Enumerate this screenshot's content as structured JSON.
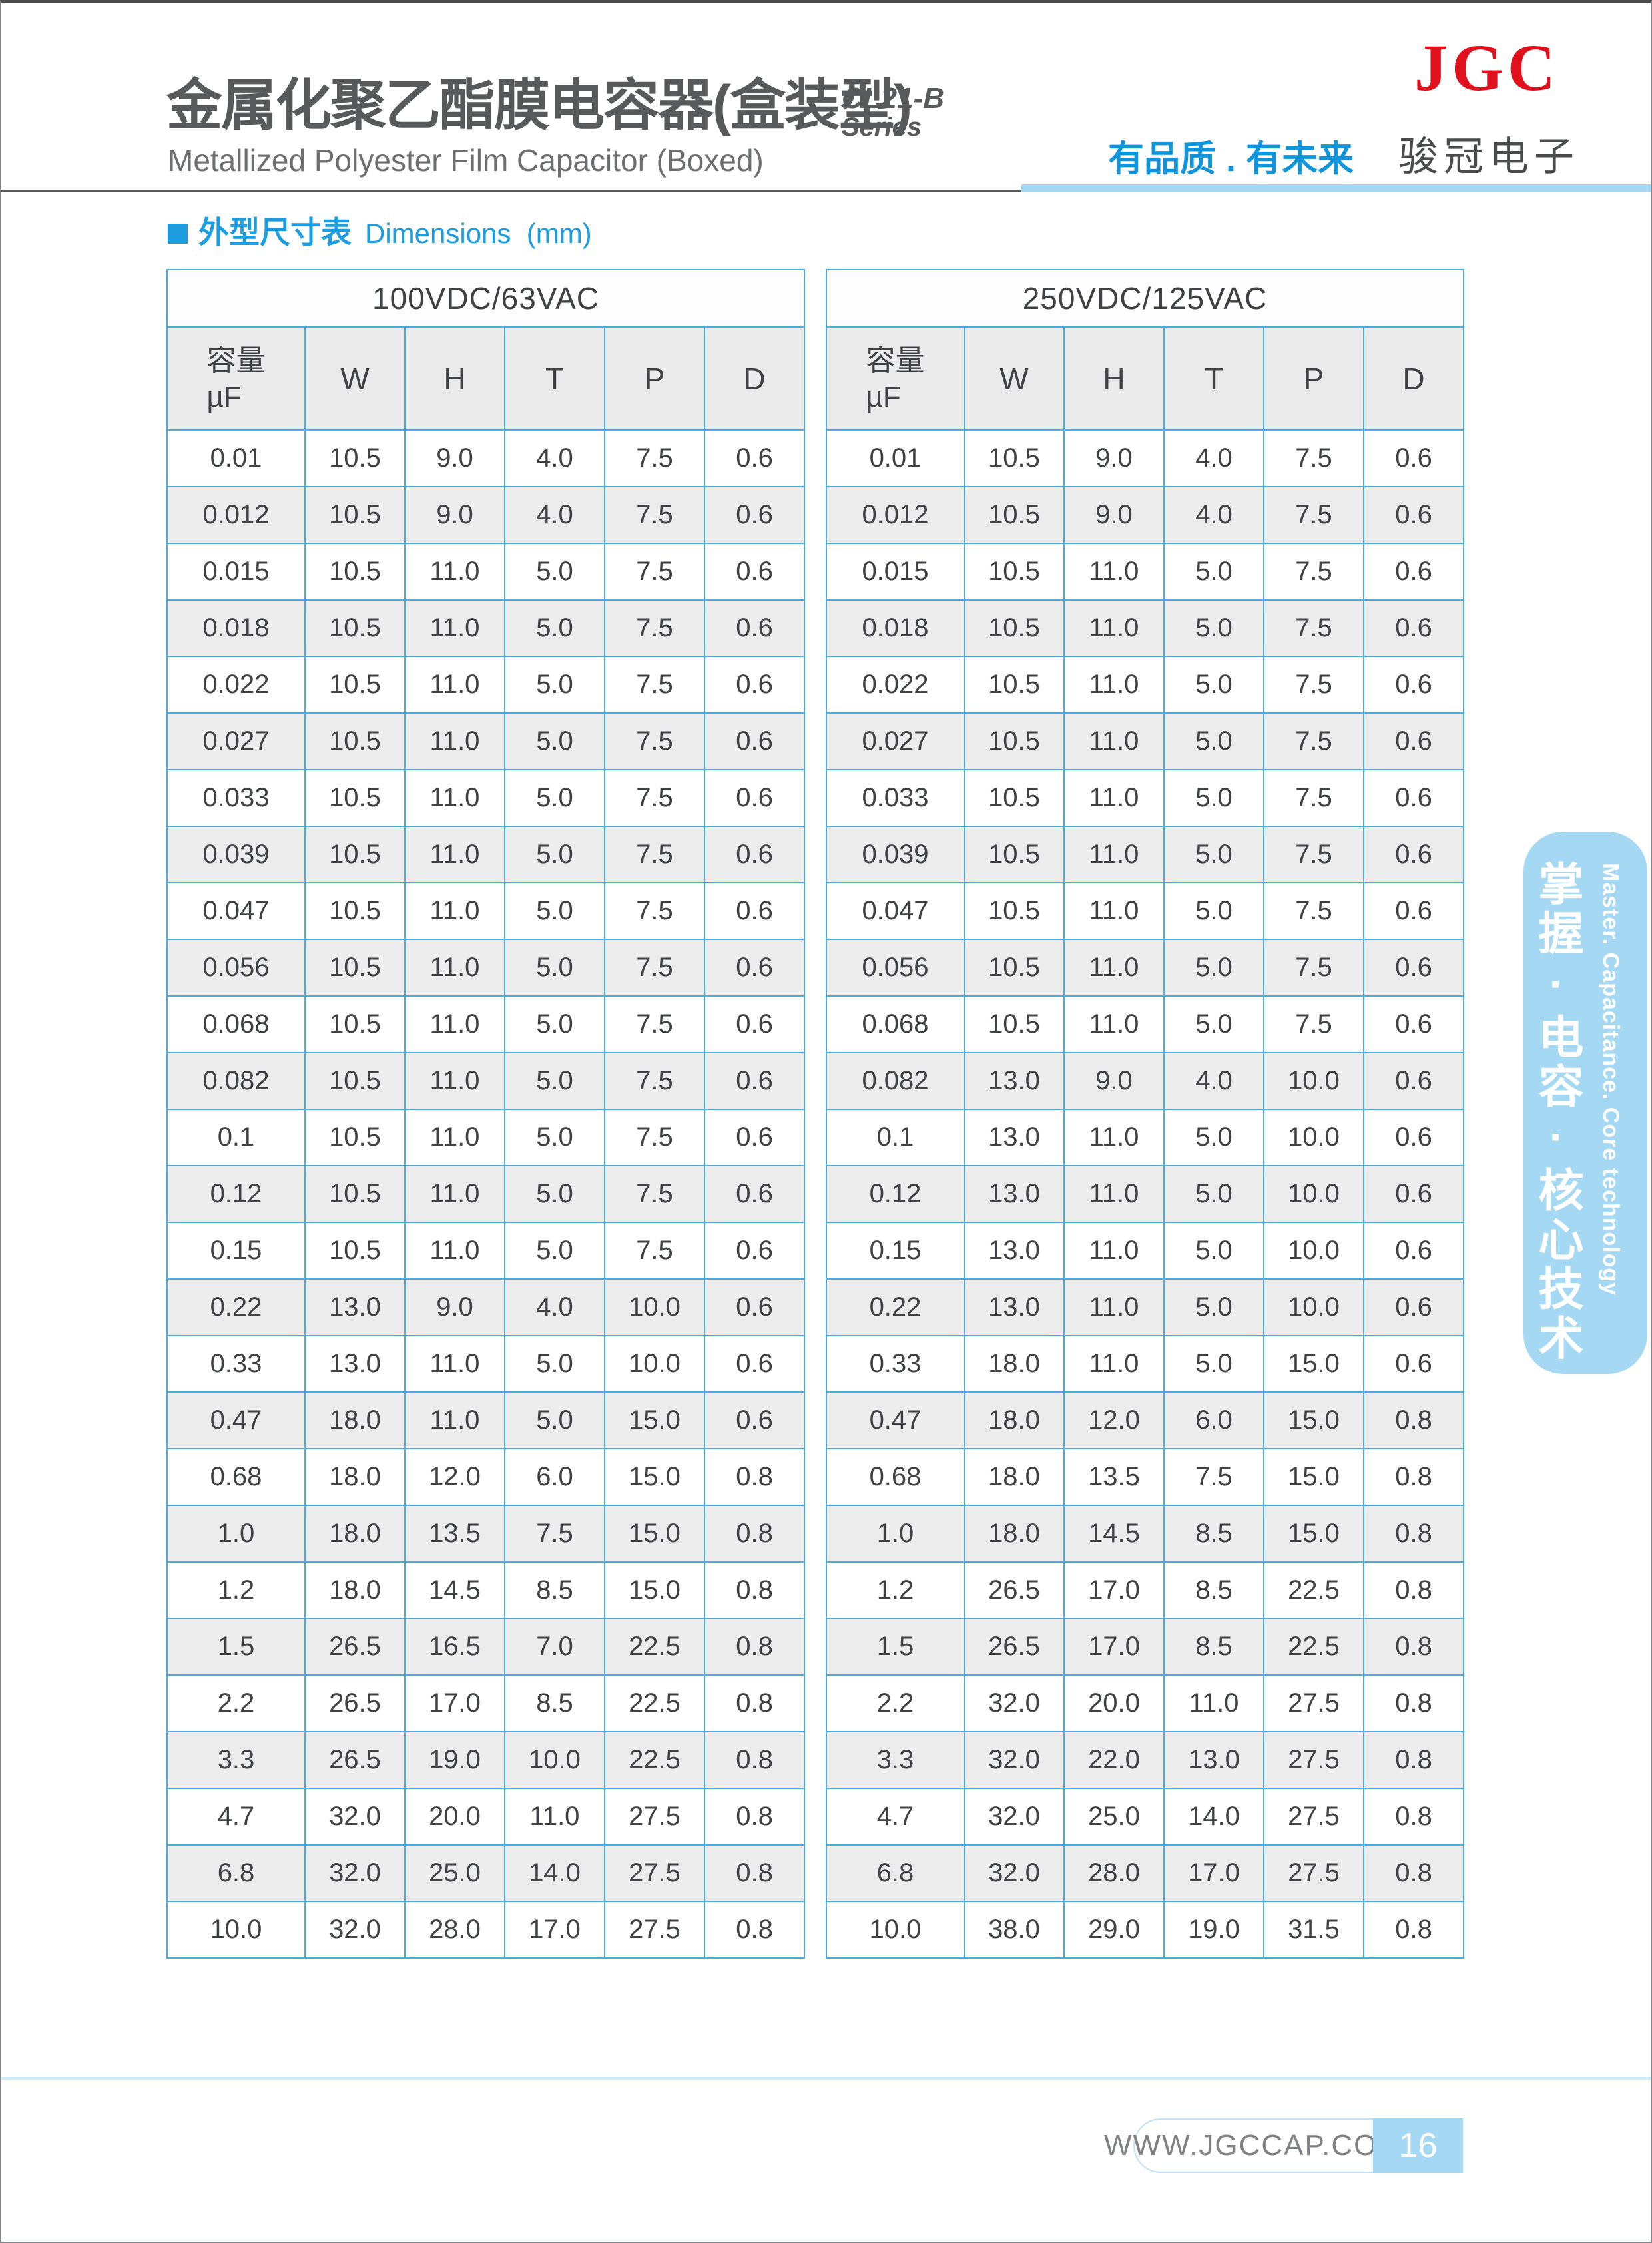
{
  "header": {
    "title_zh": "金属化聚乙酯膜电容器(盒装型)",
    "series_line1": "CL21-B",
    "series_line2": "Series",
    "title_en": "Metallized Polyester Film Capacitor (Boxed)",
    "tagline": "有品质 . 有未来",
    "logo_text": "JGC",
    "company_zh": "骏冠电子"
  },
  "section": {
    "heading_zh": "外型尺寸表",
    "heading_en": "Dimensions  (mm)"
  },
  "tables": [
    {
      "title": "100VDC/63VAC",
      "cap_line1": "容量",
      "cap_line2": "µF",
      "columns": [
        "W",
        "H",
        "T",
        "P",
        "D"
      ],
      "rows": [
        [
          "0.01",
          "10.5",
          "9.0",
          "4.0",
          "7.5",
          "0.6"
        ],
        [
          "0.012",
          "10.5",
          "9.0",
          "4.0",
          "7.5",
          "0.6"
        ],
        [
          "0.015",
          "10.5",
          "11.0",
          "5.0",
          "7.5",
          "0.6"
        ],
        [
          "0.018",
          "10.5",
          "11.0",
          "5.0",
          "7.5",
          "0.6"
        ],
        [
          "0.022",
          "10.5",
          "11.0",
          "5.0",
          "7.5",
          "0.6"
        ],
        [
          "0.027",
          "10.5",
          "11.0",
          "5.0",
          "7.5",
          "0.6"
        ],
        [
          "0.033",
          "10.5",
          "11.0",
          "5.0",
          "7.5",
          "0.6"
        ],
        [
          "0.039",
          "10.5",
          "11.0",
          "5.0",
          "7.5",
          "0.6"
        ],
        [
          "0.047",
          "10.5",
          "11.0",
          "5.0",
          "7.5",
          "0.6"
        ],
        [
          "0.056",
          "10.5",
          "11.0",
          "5.0",
          "7.5",
          "0.6"
        ],
        [
          "0.068",
          "10.5",
          "11.0",
          "5.0",
          "7.5",
          "0.6"
        ],
        [
          "0.082",
          "10.5",
          "11.0",
          "5.0",
          "7.5",
          "0.6"
        ],
        [
          "0.1",
          "10.5",
          "11.0",
          "5.0",
          "7.5",
          "0.6"
        ],
        [
          "0.12",
          "10.5",
          "11.0",
          "5.0",
          "7.5",
          "0.6"
        ],
        [
          "0.15",
          "10.5",
          "11.0",
          "5.0",
          "7.5",
          "0.6"
        ],
        [
          "0.22",
          "13.0",
          "9.0",
          "4.0",
          "10.0",
          "0.6"
        ],
        [
          "0.33",
          "13.0",
          "11.0",
          "5.0",
          "10.0",
          "0.6"
        ],
        [
          "0.47",
          "18.0",
          "11.0",
          "5.0",
          "15.0",
          "0.6"
        ],
        [
          "0.68",
          "18.0",
          "12.0",
          "6.0",
          "15.0",
          "0.8"
        ],
        [
          "1.0",
          "18.0",
          "13.5",
          "7.5",
          "15.0",
          "0.8"
        ],
        [
          "1.2",
          "18.0",
          "14.5",
          "8.5",
          "15.0",
          "0.8"
        ],
        [
          "1.5",
          "26.5",
          "16.5",
          "7.0",
          "22.5",
          "0.8"
        ],
        [
          "2.2",
          "26.5",
          "17.0",
          "8.5",
          "22.5",
          "0.8"
        ],
        [
          "3.3",
          "26.5",
          "19.0",
          "10.0",
          "22.5",
          "0.8"
        ],
        [
          "4.7",
          "32.0",
          "20.0",
          "11.0",
          "27.5",
          "0.8"
        ],
        [
          "6.8",
          "32.0",
          "25.0",
          "14.0",
          "27.5",
          "0.8"
        ],
        [
          "10.0",
          "32.0",
          "28.0",
          "17.0",
          "27.5",
          "0.8"
        ]
      ]
    },
    {
      "title": "250VDC/125VAC",
      "cap_line1": "容量",
      "cap_line2": "µF",
      "columns": [
        "W",
        "H",
        "T",
        "P",
        "D"
      ],
      "rows": [
        [
          "0.01",
          "10.5",
          "9.0",
          "4.0",
          "7.5",
          "0.6"
        ],
        [
          "0.012",
          "10.5",
          "9.0",
          "4.0",
          "7.5",
          "0.6"
        ],
        [
          "0.015",
          "10.5",
          "11.0",
          "5.0",
          "7.5",
          "0.6"
        ],
        [
          "0.018",
          "10.5",
          "11.0",
          "5.0",
          "7.5",
          "0.6"
        ],
        [
          "0.022",
          "10.5",
          "11.0",
          "5.0",
          "7.5",
          "0.6"
        ],
        [
          "0.027",
          "10.5",
          "11.0",
          "5.0",
          "7.5",
          "0.6"
        ],
        [
          "0.033",
          "10.5",
          "11.0",
          "5.0",
          "7.5",
          "0.6"
        ],
        [
          "0.039",
          "10.5",
          "11.0",
          "5.0",
          "7.5",
          "0.6"
        ],
        [
          "0.047",
          "10.5",
          "11.0",
          "5.0",
          "7.5",
          "0.6"
        ],
        [
          "0.056",
          "10.5",
          "11.0",
          "5.0",
          "7.5",
          "0.6"
        ],
        [
          "0.068",
          "10.5",
          "11.0",
          "5.0",
          "7.5",
          "0.6"
        ],
        [
          "0.082",
          "13.0",
          "9.0",
          "4.0",
          "10.0",
          "0.6"
        ],
        [
          "0.1",
          "13.0",
          "11.0",
          "5.0",
          "10.0",
          "0.6"
        ],
        [
          "0.12",
          "13.0",
          "11.0",
          "5.0",
          "10.0",
          "0.6"
        ],
        [
          "0.15",
          "13.0",
          "11.0",
          "5.0",
          "10.0",
          "0.6"
        ],
        [
          "0.22",
          "13.0",
          "11.0",
          "5.0",
          "10.0",
          "0.6"
        ],
        [
          "0.33",
          "18.0",
          "11.0",
          "5.0",
          "15.0",
          "0.6"
        ],
        [
          "0.47",
          "18.0",
          "12.0",
          "6.0",
          "15.0",
          "0.8"
        ],
        [
          "0.68",
          "18.0",
          "13.5",
          "7.5",
          "15.0",
          "0.8"
        ],
        [
          "1.0",
          "18.0",
          "14.5",
          "8.5",
          "15.0",
          "0.8"
        ],
        [
          "1.2",
          "26.5",
          "17.0",
          "8.5",
          "22.5",
          "0.8"
        ],
        [
          "1.5",
          "26.5",
          "17.0",
          "8.5",
          "22.5",
          "0.8"
        ],
        [
          "2.2",
          "32.0",
          "20.0",
          "11.0",
          "27.5",
          "0.8"
        ],
        [
          "3.3",
          "32.0",
          "22.0",
          "13.0",
          "27.5",
          "0.8"
        ],
        [
          "4.7",
          "32.0",
          "25.0",
          "14.0",
          "27.5",
          "0.8"
        ],
        [
          "6.8",
          "32.0",
          "28.0",
          "17.0",
          "27.5",
          "0.8"
        ],
        [
          "10.0",
          "38.0",
          "29.0",
          "19.0",
          "31.5",
          "0.8"
        ]
      ]
    }
  ],
  "sidebar": {
    "slogan_zh": "掌握·电容·核心技术",
    "slogan_en": "Master. Capacitance. Core technology"
  },
  "footer": {
    "website": "WWW.JGCCAP.COM",
    "page_number": "16"
  },
  "colors": {
    "accent_blue": "#1b9de0",
    "table_border_blue": "#49abdf",
    "stripe_gray": "#ececec",
    "light_blue": "#a5d9f3",
    "logo_red": "#e0101c",
    "title_gray": "#58595b"
  }
}
